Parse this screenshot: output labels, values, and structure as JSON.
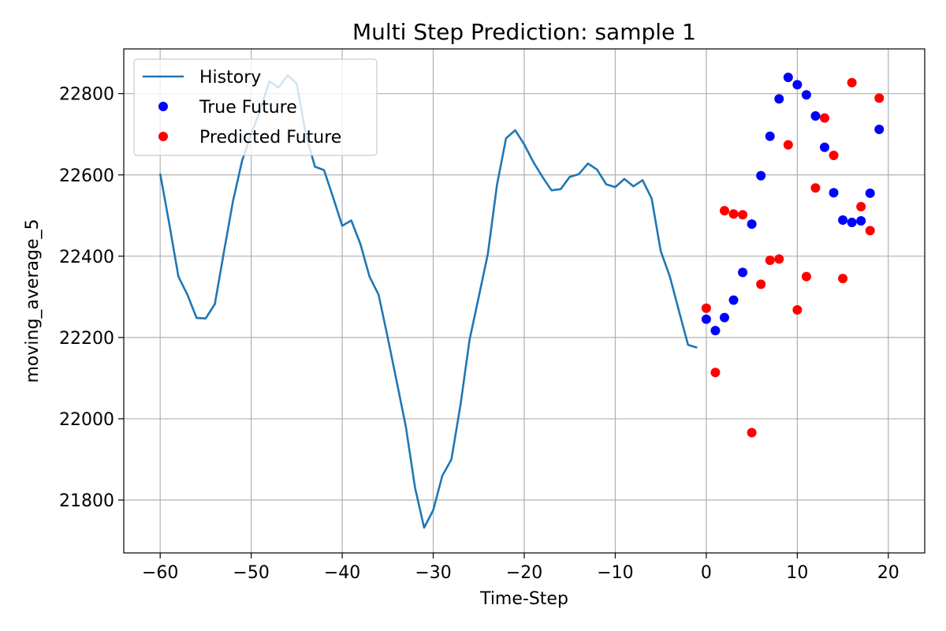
{
  "chart_data": {
    "type": "line",
    "title": "Multi Step Prediction: sample 1",
    "xlabel": "Time-Step",
    "ylabel": "moving_average_5",
    "xlim": [
      -64,
      24
    ],
    "ylim": [
      21670,
      22910
    ],
    "xticks": [
      -60,
      -50,
      -40,
      -30,
      -20,
      -10,
      0,
      10,
      20
    ],
    "yticks": [
      21800,
      22000,
      22200,
      22400,
      22600,
      22800
    ],
    "xtick_labels": [
      "−60",
      "−50",
      "−40",
      "−30",
      "−20",
      "−10",
      "0",
      "10",
      "20"
    ],
    "ytick_labels": [
      "21800",
      "22000",
      "22200",
      "22400",
      "22600",
      "22800"
    ],
    "grid": true,
    "legend_position": "top-left",
    "legend": [
      "History",
      "True Future",
      "Predicted Future"
    ],
    "colors": {
      "history": "#1f77b4",
      "true_future": "#0000ff",
      "predicted_future": "#ff0000"
    },
    "series": [
      {
        "name": "History",
        "style": "line",
        "x": [
          -60,
          -59,
          -58,
          -57,
          -56,
          -55,
          -54,
          -53,
          -52,
          -51,
          -50,
          -49,
          -48,
          -47,
          -46,
          -45,
          -44,
          -43,
          -42,
          -41,
          -40,
          -39,
          -38,
          -37,
          -36,
          -35,
          -34,
          -33,
          -32,
          -31,
          -30,
          -29,
          -28,
          -27,
          -26,
          -25,
          -24,
          -23,
          -22,
          -21,
          -20,
          -19,
          -18,
          -17,
          -16,
          -15,
          -14,
          -13,
          -12,
          -11,
          -10,
          -9,
          -8,
          -7,
          -6,
          -5,
          -4,
          -3,
          -2,
          -1
        ],
        "y": [
          22603,
          22480,
          22350,
          22305,
          22248,
          22247,
          22282,
          22410,
          22535,
          22635,
          22700,
          22760,
          22830,
          22815,
          22845,
          22825,
          22700,
          22620,
          22612,
          22545,
          22475,
          22488,
          22430,
          22350,
          22305,
          22200,
          22090,
          21980,
          21830,
          21732,
          21775,
          21860,
          21900,
          22035,
          22195,
          22300,
          22405,
          22575,
          22690,
          22710,
          22675,
          22632,
          22595,
          22562,
          22565,
          22595,
          22602,
          22628,
          22613,
          22577,
          22570,
          22590,
          22572,
          22587,
          22542,
          22412,
          22350,
          22265,
          22182,
          22175
        ]
      },
      {
        "name": "True Future",
        "style": "points",
        "x": [
          0,
          1,
          2,
          3,
          4,
          5,
          6,
          7,
          8,
          9,
          10,
          11,
          12,
          13,
          14,
          15,
          16,
          17,
          18,
          19
        ],
        "y": [
          22245,
          22217,
          22249,
          22292,
          22360,
          22479,
          22598,
          22695,
          22787,
          22840,
          22822,
          22797,
          22745,
          22668,
          22556,
          22489,
          22483,
          22487,
          22555,
          22712
        ]
      },
      {
        "name": "Predicted Future",
        "style": "points",
        "x": [
          0,
          1,
          2,
          3,
          4,
          5,
          6,
          7,
          8,
          9,
          10,
          11,
          12,
          13,
          14,
          15,
          16,
          17,
          18,
          19
        ],
        "y": [
          22272,
          22114,
          22512,
          22504,
          22502,
          21966,
          22331,
          22390,
          22393,
          22674,
          22268,
          22350,
          22568,
          22740,
          22648,
          22345,
          22827,
          22522,
          22463,
          22789
        ]
      }
    ]
  }
}
